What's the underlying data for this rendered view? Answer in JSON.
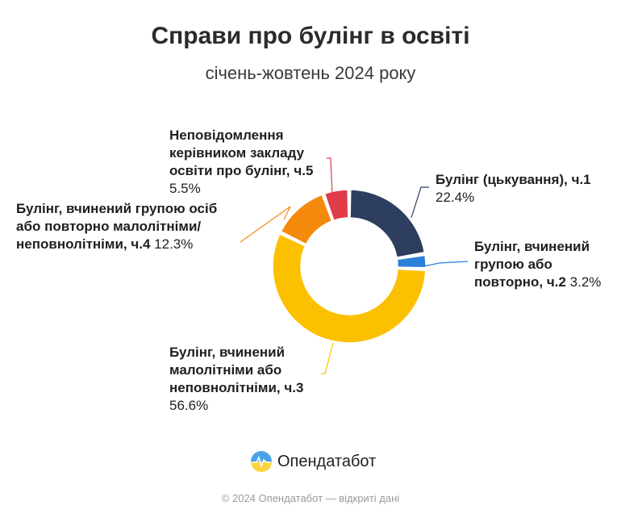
{
  "chart_data": {
    "type": "pie",
    "title": "Справи про булінг в освіті",
    "subtitle": "січень-жовтень 2024 року",
    "slices": [
      {
        "label_bold": "Булінг (цькування), ч.1",
        "value": 22.4,
        "value_label": "22.4%",
        "color": "#2d3e5f"
      },
      {
        "label_bold": "Булінг, вчинений групою або повторно, ч.2",
        "value": 3.2,
        "value_label": "3.2%",
        "color": "#2b7fd9"
      },
      {
        "label_bold": "Булінг, вчинений малолітніми або неповнолітніми, ч.3",
        "value": 56.6,
        "value_label": "56.6%",
        "color": "#fbc100"
      },
      {
        "label_bold": "Булінг, вчинений групою осіб або повторно малолітніми/неповнолітніми, ч.4",
        "value": 12.3,
        "value_label": "12.3%",
        "color": "#f48a0c"
      },
      {
        "label_bold": "Неповідомлення керівником закладу освіти про булінг, ч.5",
        "value": 5.5,
        "value_label": "5.5%",
        "color": "#e03c4a"
      }
    ]
  },
  "brand": {
    "name": "Опендатабот",
    "icon": "opendatabot-logo-icon"
  },
  "footer": "© 2024 Опендатабот — відкриті дані"
}
